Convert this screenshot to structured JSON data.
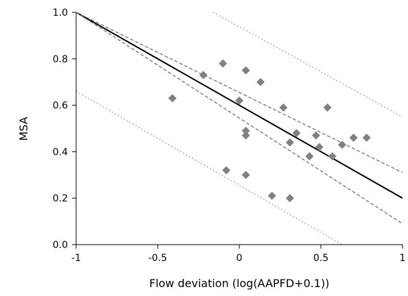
{
  "chart_data": {
    "type": "scatter",
    "title": "",
    "xlabel": "Flow deviation (log(AAPFD+0.1))",
    "ylabel": "MSA",
    "xlim": [
      -1,
      1
    ],
    "ylim": [
      0,
      1
    ],
    "x_ticks": [
      {
        "value": -1,
        "label": "-1"
      },
      {
        "value": -0.5,
        "label": "-0.5"
      },
      {
        "value": 0,
        "label": "0"
      },
      {
        "value": 0.5,
        "label": "0.5"
      },
      {
        "value": 1,
        "label": "1"
      }
    ],
    "y_ticks": [
      {
        "value": 0,
        "label": "0.0"
      },
      {
        "value": 0.2,
        "label": "0.2"
      },
      {
        "value": 0.4,
        "label": "0.4"
      },
      {
        "value": 0.6,
        "label": "0.6"
      },
      {
        "value": 0.8,
        "label": "0.8"
      },
      {
        "value": 1,
        "label": "1.0"
      }
    ],
    "grid": false,
    "points": [
      {
        "x": -0.41,
        "y": 0.63
      },
      {
        "x": -0.22,
        "y": 0.73
      },
      {
        "x": -0.1,
        "y": 0.78
      },
      {
        "x": -0.08,
        "y": 0.32
      },
      {
        "x": 0.0,
        "y": 0.62
      },
      {
        "x": 0.04,
        "y": 0.75
      },
      {
        "x": 0.04,
        "y": 0.49
      },
      {
        "x": 0.04,
        "y": 0.47
      },
      {
        "x": 0.04,
        "y": 0.3
      },
      {
        "x": 0.13,
        "y": 0.7
      },
      {
        "x": 0.2,
        "y": 0.21
      },
      {
        "x": 0.27,
        "y": 0.59
      },
      {
        "x": 0.31,
        "y": 0.44
      },
      {
        "x": 0.31,
        "y": 0.2
      },
      {
        "x": 0.35,
        "y": 0.48
      },
      {
        "x": 0.43,
        "y": 0.38
      },
      {
        "x": 0.47,
        "y": 0.47
      },
      {
        "x": 0.49,
        "y": 0.42
      },
      {
        "x": 0.54,
        "y": 0.59
      },
      {
        "x": 0.57,
        "y": 0.38
      },
      {
        "x": 0.63,
        "y": 0.43
      },
      {
        "x": 0.7,
        "y": 0.46
      },
      {
        "x": 0.78,
        "y": 0.46
      }
    ],
    "lines": [
      {
        "role": "regression",
        "style": "solid",
        "color": "#000000",
        "x": [
          -1,
          1
        ],
        "y": [
          1.0,
          0.2
        ]
      },
      {
        "role": "confidence-upper",
        "style": "dashed",
        "color": "#666666",
        "x": [
          -1,
          1
        ],
        "y": [
          1.0,
          0.31
        ]
      },
      {
        "role": "confidence-lower",
        "style": "dashed",
        "color": "#666666",
        "x": [
          -1,
          1
        ],
        "y": [
          1.0,
          0.09
        ]
      },
      {
        "role": "prediction-upper",
        "style": "dotted",
        "color": "#999999",
        "x": [
          -0.16,
          1
        ],
        "y": [
          1.0,
          0.55
        ]
      },
      {
        "role": "prediction-lower",
        "style": "dotted",
        "color": "#999999",
        "x": [
          -1,
          0.63
        ],
        "y": [
          0.66,
          0.0
        ]
      }
    ],
    "marker": {
      "shape": "diamond",
      "color": "#808080"
    }
  }
}
